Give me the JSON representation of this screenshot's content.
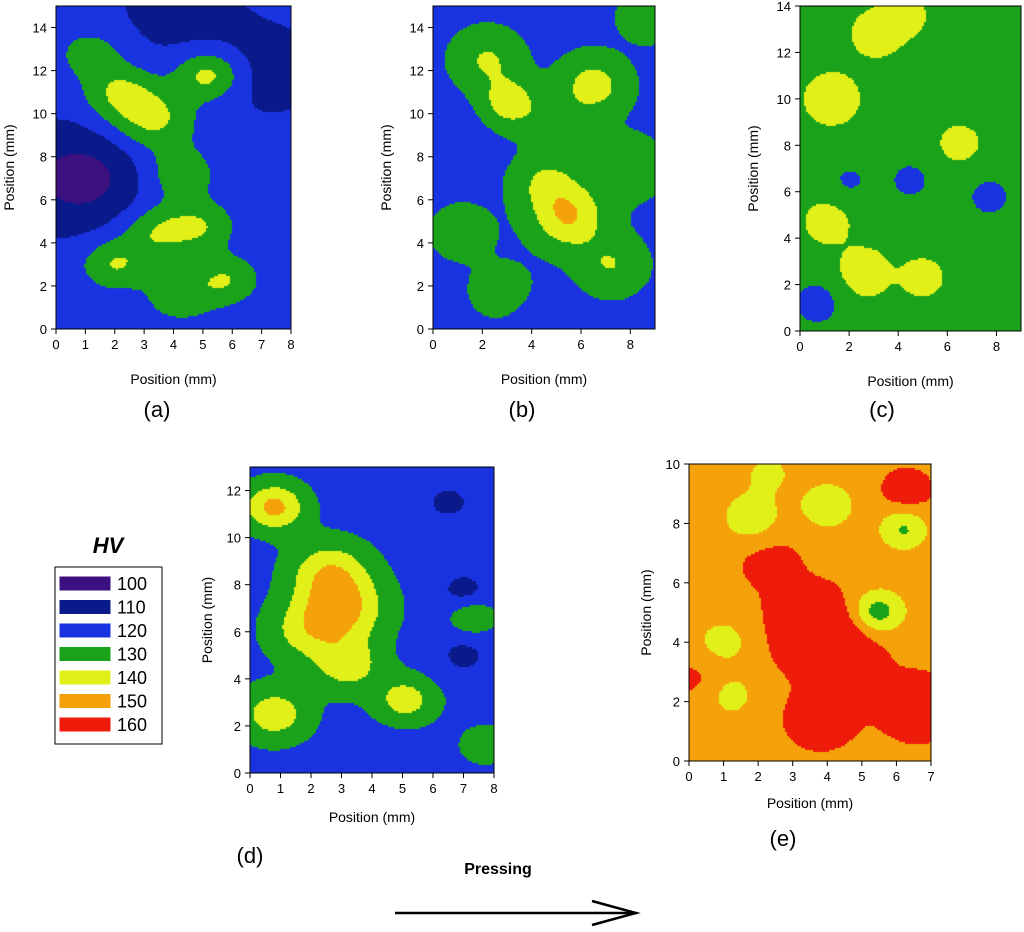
{
  "figure": {
    "pressing_label": "Pressing"
  },
  "legend": {
    "title": "HV",
    "entries": [
      {
        "label": "100",
        "color": "#3d1080"
      },
      {
        "label": "110",
        "color": "#0a1a8a"
      },
      {
        "label": "120",
        "color": "#1a33e0"
      },
      {
        "label": "130",
        "color": "#1aa31a"
      },
      {
        "label": "140",
        "color": "#e2f01a"
      },
      {
        "label": "150",
        "color": "#f5a20a"
      },
      {
        "label": "160",
        "color": "#ee1a0a"
      }
    ]
  },
  "chart_data": [
    {
      "panel": "(a)",
      "type": "heatmap",
      "subtype": "contour",
      "xlabel": "Position (mm)",
      "ylabel": "Position (mm)",
      "xlim": [
        0,
        8
      ],
      "ylim": [
        0,
        15
      ],
      "xticks": [
        0,
        1,
        2,
        3,
        4,
        5,
        6,
        7,
        8
      ],
      "yticks": [
        0,
        2,
        4,
        6,
        8,
        10,
        12,
        14
      ],
      "base_hv": 118,
      "features": [
        {
          "x": 0.8,
          "y": 7.0,
          "hv": 101,
          "r": 1.6
        },
        {
          "x": 7.2,
          "y": 12.0,
          "hv": 111,
          "r": 1.5
        },
        {
          "x": 4.2,
          "y": 14.6,
          "hv": 112,
          "r": 1.6
        },
        {
          "x": 5.2,
          "y": 11.8,
          "hv": 140,
          "r": 0.8
        },
        {
          "x": 3.3,
          "y": 9.7,
          "hv": 137,
          "r": 1.0
        },
        {
          "x": 2.2,
          "y": 11.0,
          "hv": 135,
          "r": 0.9
        },
        {
          "x": 1.2,
          "y": 12.8,
          "hv": 130,
          "r": 0.8
        },
        {
          "x": 4.2,
          "y": 7.2,
          "hv": 132,
          "r": 0.9
        },
        {
          "x": 3.5,
          "y": 4.5,
          "hv": 135,
          "r": 0.9
        },
        {
          "x": 5.0,
          "y": 4.8,
          "hv": 132,
          "r": 0.8
        },
        {
          "x": 2.0,
          "y": 3.0,
          "hv": 135,
          "r": 0.8
        },
        {
          "x": 5.8,
          "y": 2.3,
          "hv": 134,
          "r": 0.8
        },
        {
          "x": 4.2,
          "y": 1.5,
          "hv": 130,
          "r": 0.9
        }
      ]
    },
    {
      "panel": "(b)",
      "type": "heatmap",
      "subtype": "contour",
      "xlabel": "Position (mm)",
      "ylabel": "Position (mm)",
      "xlim": [
        0,
        9
      ],
      "ylim": [
        0,
        15
      ],
      "xticks": [
        0,
        2,
        4,
        6,
        8
      ],
      "yticks": [
        0,
        2,
        4,
        6,
        8,
        10,
        12,
        14
      ],
      "base_hv": 123,
      "features": [
        {
          "x": 5.5,
          "y": 5.2,
          "hv": 145,
          "r": 1.0
        },
        {
          "x": 4.6,
          "y": 6.8,
          "hv": 136,
          "r": 0.9
        },
        {
          "x": 3.1,
          "y": 10.5,
          "hv": 141,
          "r": 0.8
        },
        {
          "x": 2.2,
          "y": 12.5,
          "hv": 136,
          "r": 0.9
        },
        {
          "x": 6.5,
          "y": 11.3,
          "hv": 140,
          "r": 0.9
        },
        {
          "x": 5.0,
          "y": 9.5,
          "hv": 132,
          "r": 0.8
        },
        {
          "x": 8.7,
          "y": 14.5,
          "hv": 135,
          "r": 0.7
        },
        {
          "x": 7.8,
          "y": 7.5,
          "hv": 132,
          "r": 1.0
        },
        {
          "x": 1.2,
          "y": 4.5,
          "hv": 132,
          "r": 0.8
        },
        {
          "x": 7.2,
          "y": 3.0,
          "hv": 135,
          "r": 0.9
        },
        {
          "x": 2.8,
          "y": 1.8,
          "hv": 132,
          "r": 0.8
        },
        {
          "x": 4.5,
          "y": 0.5,
          "hv": 119,
          "r": 0.9
        },
        {
          "x": 1.0,
          "y": 9.0,
          "hv": 119,
          "r": 1.0
        }
      ]
    },
    {
      "panel": "(c)",
      "type": "heatmap",
      "subtype": "contour",
      "xlabel": "Position (mm)",
      "ylabel": "Position (mm)",
      "xlim": [
        0,
        9
      ],
      "ylim": [
        0,
        14
      ],
      "xticks": [
        0,
        2,
        4,
        6,
        8
      ],
      "yticks": [
        0,
        2,
        4,
        6,
        8,
        10,
        12,
        14
      ],
      "base_hv": 131,
      "features": [
        {
          "x": 3.1,
          "y": 12.8,
          "hv": 142,
          "r": 0.7
        },
        {
          "x": 4.3,
          "y": 13.6,
          "hv": 139,
          "r": 0.7
        },
        {
          "x": 1.3,
          "y": 10.0,
          "hv": 140,
          "r": 0.9
        },
        {
          "x": 2.6,
          "y": 2.5,
          "hv": 141,
          "r": 0.8
        },
        {
          "x": 1.1,
          "y": 4.7,
          "hv": 140,
          "r": 0.7
        },
        {
          "x": 5.0,
          "y": 2.3,
          "hv": 141,
          "r": 0.6
        },
        {
          "x": 6.5,
          "y": 8.0,
          "hv": 138,
          "r": 0.8
        },
        {
          "x": 4.5,
          "y": 6.5,
          "hv": 123,
          "r": 0.8
        },
        {
          "x": 0.7,
          "y": 1.2,
          "hv": 121,
          "r": 0.8
        },
        {
          "x": 7.7,
          "y": 5.8,
          "hv": 123,
          "r": 0.9
        },
        {
          "x": 2.0,
          "y": 6.5,
          "hv": 124,
          "r": 0.7
        }
      ]
    },
    {
      "panel": "(d)",
      "type": "heatmap",
      "subtype": "contour",
      "xlabel": "Position (mm)",
      "ylabel": "Position (mm)",
      "xlim": [
        0,
        8
      ],
      "ylim": [
        0,
        13
      ],
      "xticks": [
        0,
        1,
        2,
        3,
        4,
        5,
        6,
        7,
        8
      ],
      "yticks": [
        0,
        2,
        4,
        6,
        8,
        10,
        12
      ],
      "base_hv": 122,
      "features": [
        {
          "x": 0.8,
          "y": 11.3,
          "hv": 148,
          "r": 0.7
        },
        {
          "x": 3.0,
          "y": 7.0,
          "hv": 147,
          "r": 1.0
        },
        {
          "x": 2.6,
          "y": 8.6,
          "hv": 141,
          "r": 0.9
        },
        {
          "x": 3.2,
          "y": 4.6,
          "hv": 140,
          "r": 0.8
        },
        {
          "x": 0.8,
          "y": 2.5,
          "hv": 141,
          "r": 0.8
        },
        {
          "x": 5.1,
          "y": 3.1,
          "hv": 140,
          "r": 0.7
        },
        {
          "x": 1.8,
          "y": 6.0,
          "hv": 136,
          "r": 0.9
        },
        {
          "x": 7.0,
          "y": 7.8,
          "hv": 112,
          "r": 0.6
        },
        {
          "x": 7.0,
          "y": 5.0,
          "hv": 113,
          "r": 0.7
        },
        {
          "x": 7.3,
          "y": 6.6,
          "hv": 135,
          "r": 0.5
        },
        {
          "x": 7.7,
          "y": 1.2,
          "hv": 135,
          "r": 0.5
        },
        {
          "x": 6.5,
          "y": 11.5,
          "hv": 113,
          "r": 0.7
        },
        {
          "x": 4.5,
          "y": 0.6,
          "hv": 120,
          "r": 0.9
        }
      ]
    },
    {
      "panel": "(e)",
      "type": "heatmap",
      "subtype": "contour",
      "xlabel": "Position (mm)",
      "ylabel": "Position (mm)",
      "xlim": [
        0,
        7
      ],
      "ylim": [
        0,
        10
      ],
      "xticks": [
        0,
        1,
        2,
        3,
        4,
        5,
        6,
        7
      ],
      "yticks": [
        0,
        2,
        4,
        6,
        8,
        10
      ],
      "base_hv": 152,
      "features": [
        {
          "x": 5.4,
          "y": 5.0,
          "hv": 132,
          "r": 0.5
        },
        {
          "x": 5.7,
          "y": 5.0,
          "hv": 147,
          "r": 0.75
        },
        {
          "x": 6.2,
          "y": 7.8,
          "hv": 134,
          "r": 0.5
        },
        {
          "x": 4.0,
          "y": 8.6,
          "hv": 136,
          "r": 0.55
        },
        {
          "x": 1.8,
          "y": 8.2,
          "hv": 137,
          "r": 0.6
        },
        {
          "x": 1.0,
          "y": 4.0,
          "hv": 141,
          "r": 0.65
        },
        {
          "x": 1.2,
          "y": 2.2,
          "hv": 141,
          "r": 0.55
        },
        {
          "x": 2.3,
          "y": 9.7,
          "hv": 142,
          "r": 0.5
        },
        {
          "x": 3.5,
          "y": 4.5,
          "hv": 162,
          "r": 1.0
        },
        {
          "x": 4.5,
          "y": 4.0,
          "hv": 162,
          "r": 0.9
        },
        {
          "x": 3.8,
          "y": 1.4,
          "hv": 162,
          "r": 0.7
        },
        {
          "x": 6.6,
          "y": 1.8,
          "hv": 162,
          "r": 0.8
        },
        {
          "x": 6.3,
          "y": 9.1,
          "hv": 162,
          "r": 0.5
        },
        {
          "x": 2.3,
          "y": 6.8,
          "hv": 158,
          "r": 0.7
        },
        {
          "x": 0.3,
          "y": 2.8,
          "hv": 158,
          "r": 0.6
        }
      ]
    }
  ]
}
